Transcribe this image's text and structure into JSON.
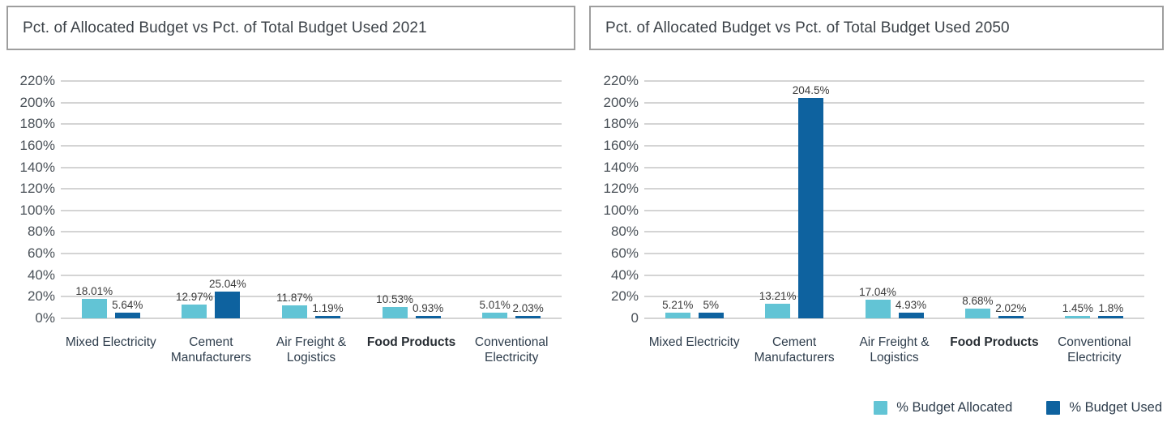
{
  "page": {
    "background": "#ffffff"
  },
  "colors": {
    "allocated": "#62c4d5",
    "used": "#0e629f",
    "gridline": "#d4d4d4",
    "title_box_border": "#9e9e9e"
  },
  "chart_data": [
    {
      "type": "bar",
      "title": "Pct. of Allocated Budget vs Pct. of Total Budget Used 2021",
      "ylim": [
        0,
        220
      ],
      "grid": true,
      "legend_position": "none",
      "y_tick_labels": [
        "220%",
        "200%",
        "180%",
        "160%",
        "140%",
        "120%",
        "100%",
        "80%",
        "60%",
        "40%",
        "20%",
        "0%"
      ],
      "categories": [
        {
          "label": "Mixed Electricity",
          "bold": false
        },
        {
          "label": "Cement Manufacturers",
          "bold": false
        },
        {
          "label": "Air Freight & Logistics",
          "bold": false
        },
        {
          "label": "Food Products",
          "bold": true
        },
        {
          "label": "Conventional Electricity",
          "bold": false
        }
      ],
      "series": [
        {
          "name": "% Budget Allocated",
          "color": "#62c4d5",
          "values": [
            18.01,
            12.97,
            11.87,
            10.53,
            5.01
          ],
          "value_labels": [
            "18.01%",
            "12.97%",
            "11.87%",
            "10.53%",
            "5.01%"
          ]
        },
        {
          "name": "% Budget Used",
          "color": "#0e629f",
          "values": [
            5.64,
            25.04,
            1.19,
            0.93,
            2.03
          ],
          "value_labels": [
            "5.64%",
            "25.04%",
            "1.19%",
            "0.93%",
            "2.03%"
          ]
        }
      ]
    },
    {
      "type": "bar",
      "title": "Pct. of Allocated Budget vs Pct. of Total Budget Used 2050",
      "ylim": [
        0,
        220
      ],
      "grid": true,
      "legend_position": "bottom-right",
      "y_tick_labels": [
        "220%",
        "200%",
        "180%",
        "160%",
        "140%",
        "120%",
        "100%",
        "80%",
        "60%",
        "40%",
        "20%",
        "0"
      ],
      "categories": [
        {
          "label": "Mixed Electricity",
          "bold": false
        },
        {
          "label": "Cement Manufacturers",
          "bold": false
        },
        {
          "label": "Air Freight & Logistics",
          "bold": false
        },
        {
          "label": "Food Products",
          "bold": true
        },
        {
          "label": "Conventional Electricity",
          "bold": false
        }
      ],
      "series": [
        {
          "name": "% Budget Allocated",
          "color": "#62c4d5",
          "values": [
            5.21,
            13.21,
            17.04,
            8.68,
            1.45
          ],
          "value_labels": [
            "5.21%",
            "13.21%",
            "17.04%",
            "8.68%",
            "1.45%"
          ]
        },
        {
          "name": "% Budget Used",
          "color": "#0e629f",
          "values": [
            5,
            204.5,
            4.93,
            2.02,
            1.8
          ],
          "value_labels": [
            "5%",
            "204.5%",
            "4.93%",
            "2.02%",
            "1.8%"
          ]
        }
      ]
    }
  ],
  "legend": {
    "items": [
      {
        "label": "% Budget Allocated",
        "color": "#62c4d5"
      },
      {
        "label": "% Budget Used",
        "color": "#0e629f"
      }
    ]
  }
}
